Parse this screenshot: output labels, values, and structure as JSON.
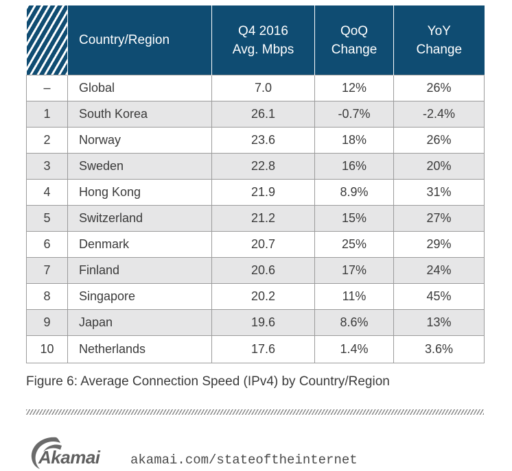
{
  "table": {
    "headers": {
      "rank": "",
      "country": "Country/Region",
      "speed_line1": "Q4 2016",
      "speed_line2": "Avg. Mbps",
      "qoq_line1": "QoQ",
      "qoq_line2": "Change",
      "yoy_line1": "YoY",
      "yoy_line2": "Change"
    },
    "rows": [
      {
        "rank": "–",
        "country": "Global",
        "speed": "7.0",
        "qoq": "12%",
        "yoy": "26%"
      },
      {
        "rank": "1",
        "country": "South Korea",
        "speed": "26.1",
        "qoq": "-0.7%",
        "yoy": "-2.4%"
      },
      {
        "rank": "2",
        "country": "Norway",
        "speed": "23.6",
        "qoq": "18%",
        "yoy": "26%"
      },
      {
        "rank": "3",
        "country": "Sweden",
        "speed": "22.8",
        "qoq": "16%",
        "yoy": "20%"
      },
      {
        "rank": "4",
        "country": "Hong Kong",
        "speed": "21.9",
        "qoq": "8.9%",
        "yoy": "31%"
      },
      {
        "rank": "5",
        "country": "Switzerland",
        "speed": "21.2",
        "qoq": "15%",
        "yoy": "27%"
      },
      {
        "rank": "6",
        "country": "Denmark",
        "speed": "20.7",
        "qoq": "25%",
        "yoy": "29%"
      },
      {
        "rank": "7",
        "country": "Finland",
        "speed": "20.6",
        "qoq": "17%",
        "yoy": "24%"
      },
      {
        "rank": "8",
        "country": "Singapore",
        "speed": "20.2",
        "qoq": "11%",
        "yoy": "45%"
      },
      {
        "rank": "9",
        "country": "Japan",
        "speed": "19.6",
        "qoq": "8.6%",
        "yoy": "13%"
      },
      {
        "rank": "10",
        "country": "Netherlands",
        "speed": "17.6",
        "qoq": "1.4%",
        "yoy": "3.6%"
      }
    ]
  },
  "caption": "Figure 6: Average Connection Speed (IPv4) by Country/Region",
  "footer": {
    "logo_text": "Akamai",
    "url": "akamai.com/stateoftheinternet"
  },
  "colors": {
    "header_bg": "#0f4c72",
    "stripe_bg": "#e6e6e7",
    "text": "#3a3a3a"
  }
}
